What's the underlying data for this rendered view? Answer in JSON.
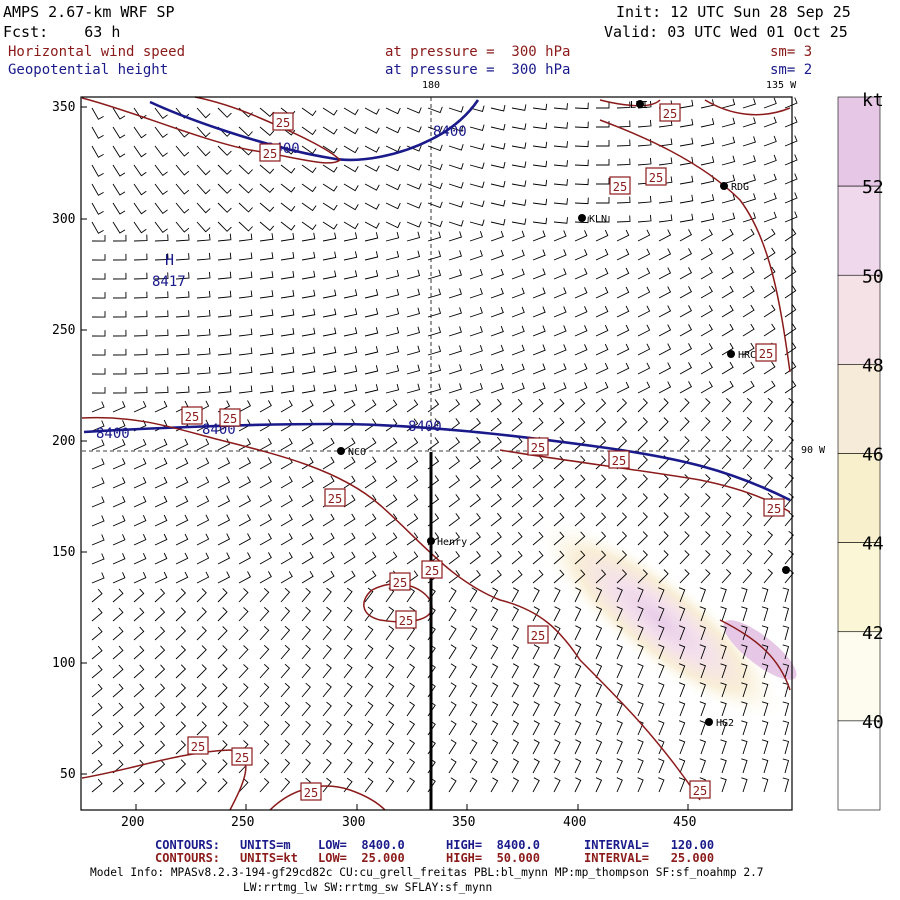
{
  "header": {
    "model": "AMPS 2.67-km WRF SP",
    "forecast": "Fcst:    63 h",
    "init": "Init: 12 UTC Sun 28 Sep 25",
    "valid": "Valid: 03 UTC Wed 01 Oct 25",
    "field1": {
      "name": "Horizontal wind speed",
      "level": "at pressure =  300 hPa",
      "smooth": "sm= 3"
    },
    "field2": {
      "name": "Geopotential height",
      "level": "at pressure =  300 hPa",
      "smooth": "sm= 2"
    }
  },
  "map": {
    "meridian_labels": {
      "top_180": "180",
      "top_135w": "135 W",
      "right_90w": "90 W"
    },
    "high_center": {
      "symbol": "H",
      "value": "8417"
    },
    "height_contour_labels": [
      "8400",
      "8400",
      "8400",
      "8400",
      "8400",
      "8400"
    ],
    "wind_contour_label": "25",
    "stations": [
      "LTI",
      "RDG",
      "KLN",
      "HRC",
      "NCO",
      "Henry",
      "HG2"
    ],
    "cross_section_line": "vertical"
  },
  "axes": {
    "x_ticks": [
      "200",
      "250",
      "300",
      "350",
      "400",
      "450"
    ],
    "y_ticks": [
      "350",
      "300",
      "250",
      "200",
      "150",
      "100",
      "50"
    ]
  },
  "colorbar": {
    "unit": "kt",
    "labels": [
      "52",
      "50",
      "48",
      "46",
      "44",
      "42",
      "40"
    ],
    "colors": [
      "#e6c8e6",
      "#f0d8ec",
      "#f5e2e6",
      "#f6ead8",
      "#f8f0cc",
      "#faf6d6",
      "#fdfcee",
      "#ffffff"
    ]
  },
  "footer": {
    "row1": {
      "label": "CONTOURS:",
      "units": "UNITS=m",
      "low": "LOW=  8400.0",
      "high": "HIGH=  8400.0",
      "interval": "INTERVAL=   120.00"
    },
    "row2": {
      "label": "CONTOURS:",
      "units": "UNITS=kt",
      "low": "LOW=  25.000",
      "high": "HIGH=  50.000",
      "interval": "INTERVAL=   25.000"
    },
    "model_info": "Model Info: MPASv8.2.3-194-gf29cd82c CU:cu_grell_freitas PBL:bl_mynn MP:mp_thompson SF:sf_noahmp 2.7",
    "model_info2": "LW:rrtmg_lw SW:rrtmg_sw SFLAY:sf_mynn"
  }
}
